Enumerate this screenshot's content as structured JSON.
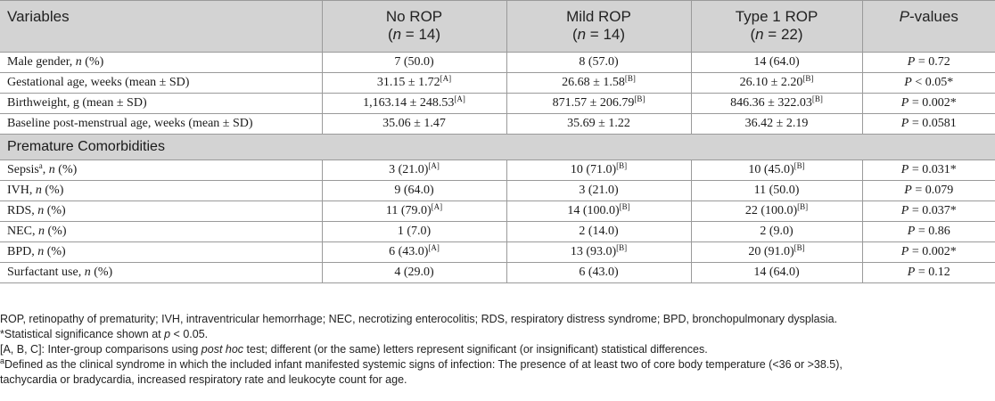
{
  "header": {
    "variables": "Variables",
    "groups": [
      {
        "name": "No ROP",
        "n": "14"
      },
      {
        "name": "Mild ROP",
        "n": "14"
      },
      {
        "name": "Type 1 ROP",
        "n": "22"
      }
    ],
    "n_label": "n",
    "pvalues_label_italic": "P",
    "pvalues_label_rest": "-values"
  },
  "rows_top": [
    {
      "label": "Male gender, ",
      "label_italic": "n",
      "label_rest": " (%)",
      "v1": "7 (50.0)",
      "s1": "",
      "v2": "8 (57.0)",
      "s2": "",
      "v3": "14 (64.0)",
      "s3": "",
      "p_op": "= 0.72",
      "star": ""
    },
    {
      "label": "Gestational age, weeks (mean ± SD)",
      "label_italic": "",
      "label_rest": "",
      "v1": "31.15 ± 1.72",
      "s1": "[A]",
      "v2": "26.68 ± 1.58",
      "s2": "[B]",
      "v3": "26.10 ± 2.20",
      "s3": "[B]",
      "p_op": "< 0.05*",
      "star": ""
    },
    {
      "label": "Birthweight, g (mean ± SD)",
      "label_italic": "",
      "label_rest": "",
      "v1": "1,163.14 ± 248.53",
      "s1": "[A]",
      "v2": "871.57 ± 206.79",
      "s2": "[B]",
      "v3": "846.36 ± 322.03",
      "s3": "[B]",
      "p_op": "= 0.002*",
      "star": ""
    },
    {
      "label": "Baseline post-menstrual age, weeks (mean ± SD)",
      "label_italic": "",
      "label_rest": "",
      "v1": "35.06 ± 1.47",
      "s1": "",
      "v2": "35.69 ± 1.22",
      "s2": "",
      "v3": "36.42 ± 2.19",
      "s3": "",
      "p_op": "= 0.0581",
      "star": ""
    }
  ],
  "section_title": "Premature Comorbidities",
  "rows_bottom": [
    {
      "label": "Sepsis",
      "label_sup": "a",
      "label_rest": ", ",
      "label_italic": "n",
      "label_end": " (%)",
      "v1": "3 (21.0)",
      "s1": "[A]",
      "v2": "10 (71.0)",
      "s2": "[B]",
      "v3": "10 (45.0)",
      "s3": "[B]",
      "p_op": "= 0.031*"
    },
    {
      "label": "IVH, ",
      "label_sup": "",
      "label_rest": "",
      "label_italic": "n",
      "label_end": " (%)",
      "v1": "9 (64.0)",
      "s1": "",
      "v2": "3 (21.0)",
      "s2": "",
      "v3": "11 (50.0)",
      "s3": "",
      "p_op": "= 0.079"
    },
    {
      "label": "RDS, ",
      "label_sup": "",
      "label_rest": "",
      "label_italic": "n",
      "label_end": " (%)",
      "v1": "11 (79.0)",
      "s1": "[A]",
      "v2": "14 (100.0)",
      "s2": "[B]",
      "v3": "22 (100.0)",
      "s3": "[B]",
      "p_op": "= 0.037*"
    },
    {
      "label": "NEC, ",
      "label_sup": "",
      "label_rest": "",
      "label_italic": "n",
      "label_end": " (%)",
      "v1": "1 (7.0)",
      "s1": "",
      "v2": "2 (14.0)",
      "s2": "",
      "v3": "2 (9.0)",
      "s3": "",
      "p_op": "= 0.86"
    },
    {
      "label": "BPD, ",
      "label_sup": "",
      "label_rest": "",
      "label_italic": "n",
      "label_end": " (%)",
      "v1": "6 (43.0)",
      "s1": "[A]",
      "v2": "13 (93.0)",
      "s2": "[B]",
      "v3": "20 (91.0)",
      "s3": "[B]",
      "p_op": "= 0.002*"
    },
    {
      "label": "Surfactant use, ",
      "label_sup": "",
      "label_rest": "",
      "label_italic": "n",
      "label_end": " (%)",
      "v1": "4 (29.0)",
      "s1": "",
      "v2": "6 (43.0)",
      "s2": "",
      "v3": "14 (64.0)",
      "s3": "",
      "p_op": "= 0.12"
    }
  ],
  "p_letter": "P",
  "footnotes": {
    "abbrev": "ROP, retinopathy of prematurity; IVH, intraventricular hemorrhage; NEC, necrotizing enterocolitis; RDS, respiratory distress syndrome; BPD, bronchopulmonary dysplasia.",
    "sig_prefix": "*Statistical significance shown at ",
    "sig_p": "p",
    "sig_suffix": " < 0.05.",
    "letters_prefix": "[A, B, C]: Inter-group comparisons using ",
    "letters_italic": "post hoc",
    "letters_suffix": " test; different (or the same) letters represent significant (or insignificant) statistical differences.",
    "def_sup": "a",
    "def_line1": "Defined as the clinical syndrome in which the included infant manifested systemic signs of infection: The presence of at least two of core body temperature (<36 or >38.5),",
    "def_line2": "tachycardia or bradycardia, increased respiratory rate and leukocyte count for age."
  }
}
